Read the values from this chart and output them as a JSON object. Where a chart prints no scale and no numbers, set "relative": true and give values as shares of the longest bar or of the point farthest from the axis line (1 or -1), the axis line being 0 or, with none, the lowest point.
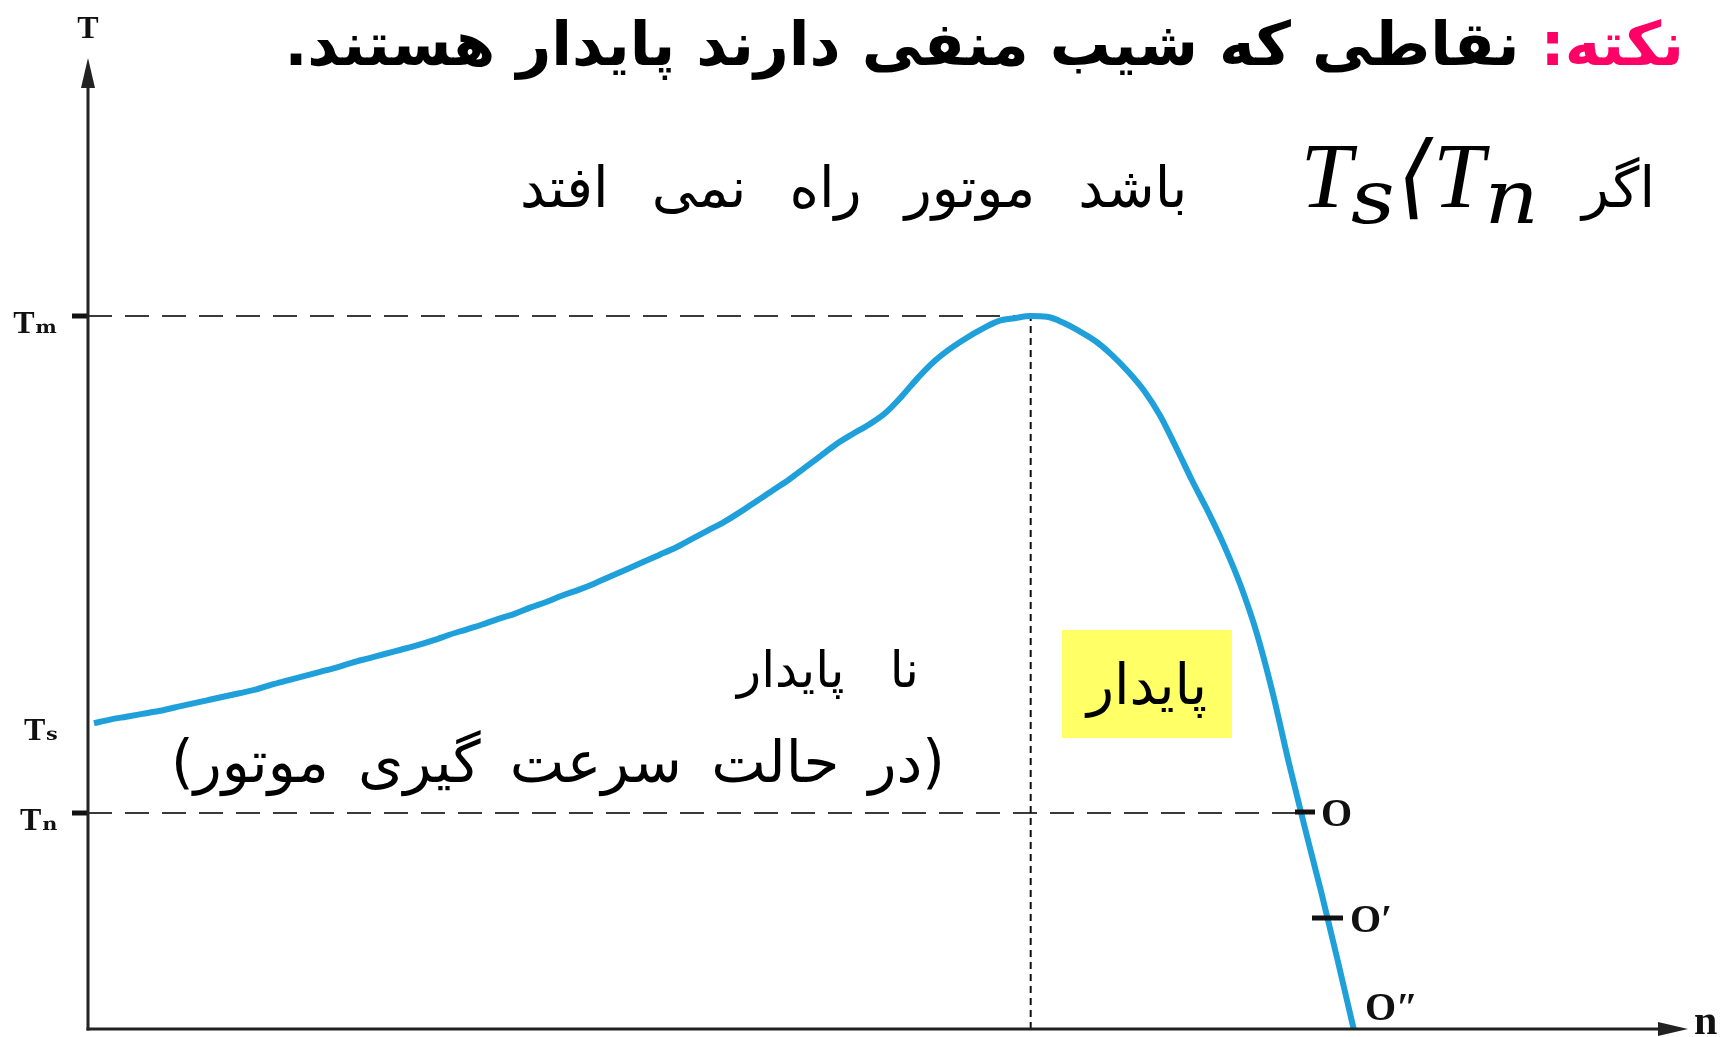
{
  "chart_data": {
    "type": "line",
    "title": "نکته:",
    "subtitle": "نقاطی که شیب منفی دارند پایدار هستند.",
    "relative": true,
    "categories": [
      null,
      null,
      null,
      null,
      null,
      null,
      null,
      null,
      null,
      null,
      null,
      null,
      null,
      null,
      null,
      null,
      null,
      null,
      null,
      null,
      null,
      null,
      null,
      null,
      null,
      null,
      null,
      null,
      null,
      null,
      null,
      null,
      null,
      null,
      null,
      null,
      null,
      null,
      null,
      null,
      null,
      null,
      null,
      null,
      null,
      null,
      null,
      null,
      null,
      null,
      null,
      null,
      null,
      null,
      null,
      null,
      null,
      null,
      null,
      null,
      null,
      null,
      null,
      null,
      null,
      null,
      null,
      null,
      null,
      null,
      null,
      null,
      null,
      null,
      null,
      null,
      null,
      null,
      null
    ],
    "series": [
      {
        "color": "#1fa0da",
        "values": [
          0.429,
          0.434,
          0.438,
          0.442,
          0.446,
          0.451,
          0.456,
          0.461,
          0.466,
          0.471,
          0.476,
          0.483,
          0.489,
          0.495,
          0.501,
          0.507,
          0.514,
          0.52,
          0.526,
          0.532,
          0.538,
          0.545,
          0.553,
          0.56,
          0.567,
          0.575,
          0.582,
          0.591,
          0.599,
          0.608,
          0.616,
          0.625,
          0.635,
          0.645,
          0.655,
          0.665,
          0.675,
          0.687,
          0.699,
          0.711,
          0.725,
          0.74,
          0.755,
          0.77,
          0.787,
          0.804,
          0.821,
          0.835,
          0.848,
          0.864,
          0.887,
          0.913,
          0.936,
          0.954,
          0.969,
          0.982,
          0.993,
          0.997,
          1.0,
          0.999,
          0.991,
          0.979,
          0.965,
          0.946,
          0.923,
          0.896,
          0.861,
          0.816,
          0.769,
          0.725,
          0.677,
          0.622,
          0.555,
          0.47,
          0.372,
          0.28,
          0.191,
          0.097,
          0
        ]
      }
    ],
    "ref_lines": [
      {
        "axis": "y",
        "value": 1,
        "label": "Tₘ",
        "line_style": "dashed",
        "color": "#3a3a3a"
      },
      {
        "axis": "y",
        "value": 0.303,
        "label": "Tₙ",
        "line_style": "dashed",
        "color": "#3a3a3a"
      }
    ],
    "annotations": [
      "T",
      "n",
      "اگر Tₛ⟨Tₙ باشد موتور راه نمی افتد",
      "نا پایدار",
      "(در حالت سرعت گیری موتور)",
      "پایدار",
      "O",
      "O′",
      "O″",
      "Tₛ"
    ]
  }
}
